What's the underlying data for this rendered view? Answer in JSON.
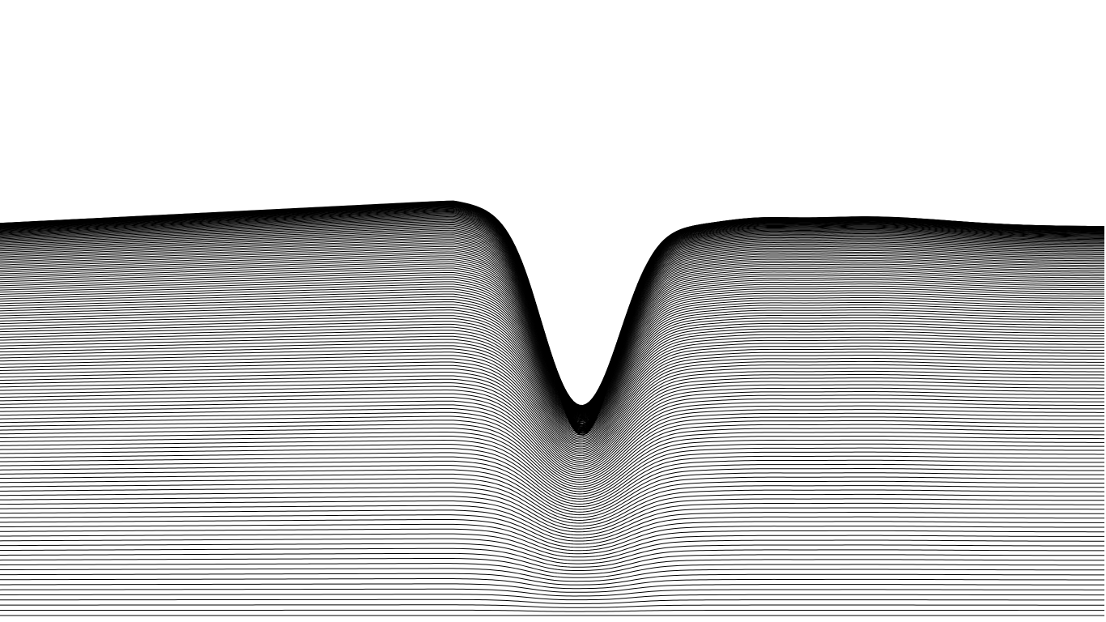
{
  "artwork": {
    "background_color": "#ffffff",
    "line_color": "#000000"
  }
}
